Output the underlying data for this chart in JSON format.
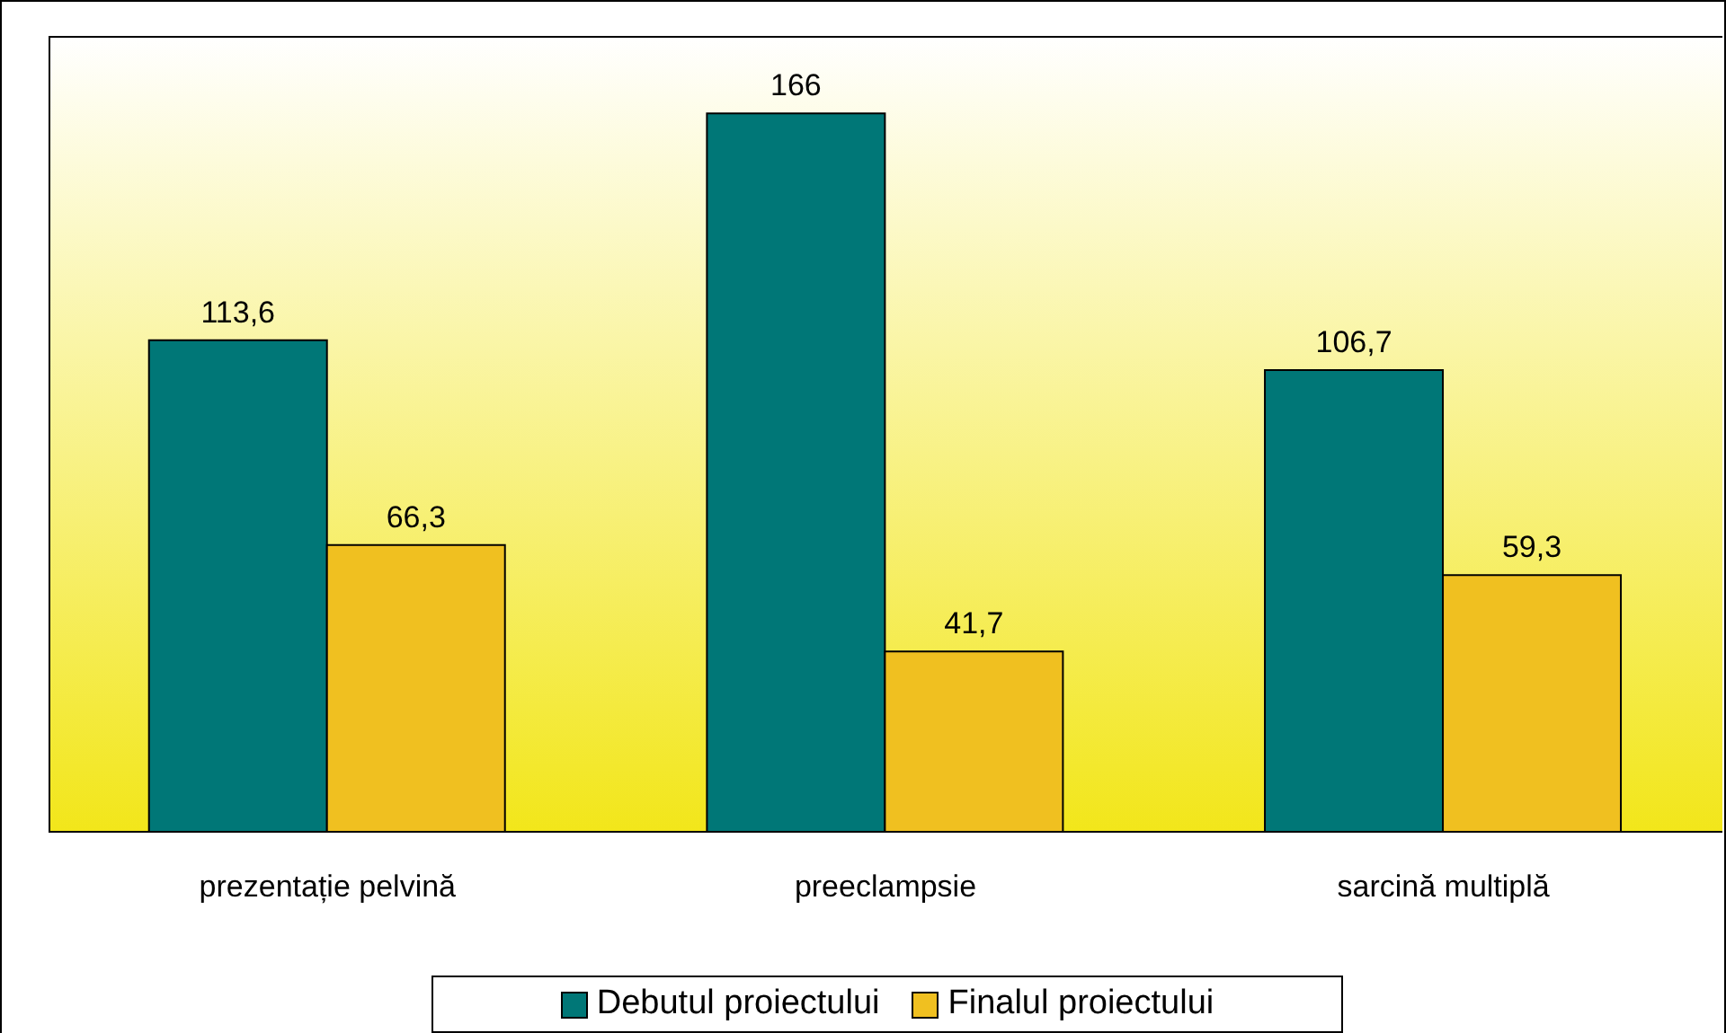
{
  "chart_data": {
    "type": "bar",
    "categories": [
      "prezentație pelvină",
      "preeclampsie",
      "sarcină multiplă"
    ],
    "series": [
      {
        "name": "Debutul proiectului",
        "color": "#007777",
        "values": [
          113.6,
          166,
          106.7
        ],
        "value_labels": [
          "113,6",
          "166",
          "106,7"
        ]
      },
      {
        "name": "Finalul proiectului",
        "color": "#f0c020",
        "values": [
          66.3,
          41.7,
          59.3
        ],
        "value_labels": [
          "66,3",
          "41,7",
          "59,3"
        ]
      }
    ],
    "legend": "bottom",
    "grid": false
  }
}
